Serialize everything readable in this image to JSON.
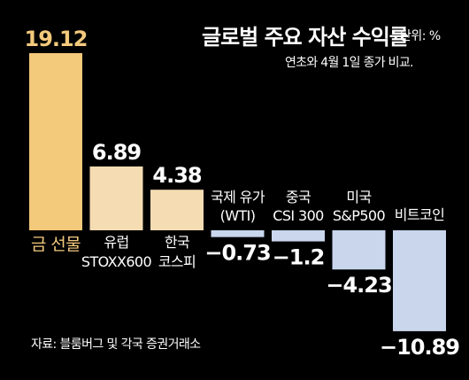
{
  "header": {
    "title": "글로벌 주요 자산 수익률",
    "unit": "단위: %",
    "subtitle": "연초와 4월 1일 종가 비교."
  },
  "footer": {
    "source": "자료: 블룸버그 및 각국 증권거래소"
  },
  "colors": {
    "highlight_bar": "#f3c97c",
    "positive_bar": "#f5dcb3",
    "negative_bar": "#c9d6ec",
    "highlight_text": "#f3c97c",
    "text": "#ffffff",
    "background": "#000000"
  },
  "chart_data": {
    "type": "bar",
    "title": "글로벌 주요 자산 수익률",
    "ylabel": "",
    "xlabel": "",
    "grid": false,
    "legend": "none",
    "categories": [
      [
        "금 선물"
      ],
      [
        "유럽",
        "STOXX600"
      ],
      [
        "한국",
        "코스피"
      ],
      [
        "국제 유가",
        "(WTI)"
      ],
      [
        "중국",
        "CSI 300"
      ],
      [
        "미국",
        "S&P500"
      ],
      [
        "비트코인"
      ]
    ],
    "values": [
      19.12,
      6.89,
      4.38,
      -0.73,
      -1.2,
      -4.23,
      -10.89
    ],
    "value_labels": [
      "19.12",
      "6.89",
      "4.38",
      "−0.73",
      "−1.2",
      "−4.23",
      "−10.89"
    ],
    "highlight_index": 0
  }
}
